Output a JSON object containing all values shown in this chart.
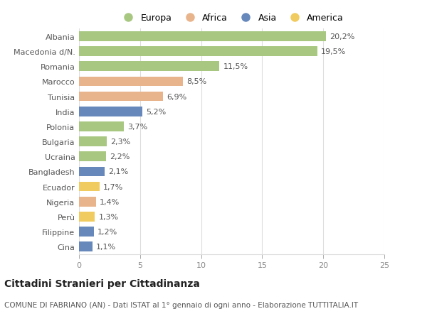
{
  "categories": [
    "Albania",
    "Macedonia d/N.",
    "Romania",
    "Marocco",
    "Tunisia",
    "India",
    "Polonia",
    "Bulgaria",
    "Ucraina",
    "Bangladesh",
    "Ecuador",
    "Nigeria",
    "Perù",
    "Filippine",
    "Cina"
  ],
  "values": [
    20.2,
    19.5,
    11.5,
    8.5,
    6.9,
    5.2,
    3.7,
    2.3,
    2.2,
    2.1,
    1.7,
    1.4,
    1.3,
    1.2,
    1.1
  ],
  "labels": [
    "20,2%",
    "19,5%",
    "11,5%",
    "8,5%",
    "6,9%",
    "5,2%",
    "3,7%",
    "2,3%",
    "2,2%",
    "2,1%",
    "1,7%",
    "1,4%",
    "1,3%",
    "1,2%",
    "1,1%"
  ],
  "continents": [
    "Europa",
    "Europa",
    "Europa",
    "Africa",
    "Africa",
    "Asia",
    "Europa",
    "Europa",
    "Europa",
    "Asia",
    "America",
    "Africa",
    "America",
    "Asia",
    "Asia"
  ],
  "continent_colors": {
    "Europa": "#a8c882",
    "Africa": "#e8b48c",
    "Asia": "#6688bb",
    "America": "#f0cc60"
  },
  "legend_order": [
    "Europa",
    "Africa",
    "Asia",
    "America"
  ],
  "title": "Cittadini Stranieri per Cittadinanza",
  "subtitle": "COMUNE DI FABRIANO (AN) - Dati ISTAT al 1° gennaio di ogni anno - Elaborazione TUTTITALIA.IT",
  "xlim": [
    0,
    25
  ],
  "xticks": [
    0,
    5,
    10,
    15,
    20,
    25
  ],
  "background_color": "#ffffff",
  "grid_color": "#dddddd",
  "bar_height": 0.65,
  "title_fontsize": 10,
  "subtitle_fontsize": 7.5,
  "label_fontsize": 8,
  "tick_fontsize": 8,
  "legend_fontsize": 9
}
